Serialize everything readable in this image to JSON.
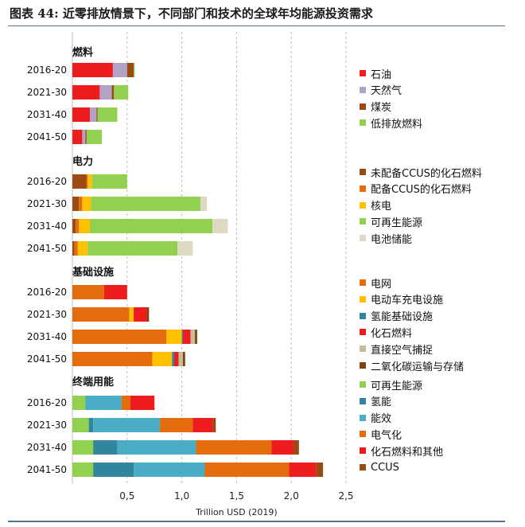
{
  "title": "图表 44:  近零排放情景下，不同部门和技术的全球年均能源投资需求",
  "chart_data": {
    "type": "bar",
    "orientation": "horizontal",
    "stacked": true,
    "xlabel": "Trillion USD (2019)",
    "xlim": [
      0,
      2.5
    ],
    "xticks": [
      "0,5",
      "1,0",
      "1,5",
      "2,0",
      "2,5"
    ],
    "tick_values": [
      0.5,
      1.0,
      1.5,
      2.0,
      2.5
    ],
    "grid": "vertical dashed",
    "panels": [
      {
        "name": "燃料",
        "categories": [
          "2016-20",
          "2021-30",
          "2031-40",
          "2041-50"
        ],
        "series": [
          {
            "name": "石油",
            "color": "#ee1c1c",
            "values": [
              0.37,
              0.25,
              0.16,
              0.09
            ]
          },
          {
            "name": "天然气",
            "color": "#b3a2c7",
            "values": [
              0.13,
              0.11,
              0.06,
              0.03
            ]
          },
          {
            "name": "煤炭",
            "color": "#9b4a12",
            "values": [
              0.06,
              0.02,
              0.01,
              0.01
            ]
          },
          {
            "name": "低排放燃料",
            "color": "#92d050",
            "values": [
              0.01,
              0.13,
              0.18,
              0.14
            ]
          }
        ]
      },
      {
        "name": "电力",
        "categories": [
          "2016-20",
          "2021-30",
          "2031-40",
          "2041-50"
        ],
        "series": [
          {
            "name": "未配备CCUS的化石燃料",
            "color": "#9b4a12",
            "values": [
              0.13,
              0.06,
              0.03,
              0.02
            ]
          },
          {
            "name": "配备CCUS的化石燃料",
            "color": "#e46c0a",
            "values": [
              0.01,
              0.03,
              0.03,
              0.03
            ]
          },
          {
            "name": "核电",
            "color": "#ffc000",
            "values": [
              0.04,
              0.08,
              0.1,
              0.09
            ]
          },
          {
            "name": "可再生能源",
            "color": "#92d050",
            "values": [
              0.32,
              1.0,
              1.12,
              0.82
            ]
          },
          {
            "name": "电池储能",
            "color": "#ddd9c3",
            "values": [
              0.0,
              0.06,
              0.14,
              0.14
            ]
          }
        ]
      },
      {
        "name": "基础设施",
        "categories": [
          "2016-20",
          "2021-30",
          "2031-40",
          "2041-50"
        ],
        "series": [
          {
            "name": "电网",
            "color": "#e46c0a",
            "values": [
              0.29,
              0.52,
              0.86,
              0.73
            ]
          },
          {
            "name": "电动车充电设施",
            "color": "#ffc000",
            "values": [
              0.0,
              0.04,
              0.14,
              0.18
            ]
          },
          {
            "name": "氢能基础设施",
            "color": "#31859c",
            "values": [
              0.0,
              0.0,
              0.01,
              0.02
            ]
          },
          {
            "name": "化石燃料",
            "color": "#ee1c1c",
            "values": [
              0.21,
              0.12,
              0.07,
              0.04
            ]
          },
          {
            "name": "直接空气捕捉",
            "color": "#c4bd97",
            "values": [
              0.0,
              0.0,
              0.04,
              0.04
            ]
          },
          {
            "name": "二氧化碳运输与存储",
            "color": "#7f3f10",
            "values": [
              0.0,
              0.02,
              0.02,
              0.02
            ]
          }
        ]
      },
      {
        "name": "终端用能",
        "categories": [
          "2016-20",
          "2021-30",
          "2031-40",
          "2041-50"
        ],
        "series": [
          {
            "name": "可再生能源",
            "color": "#92d050",
            "values": [
              0.12,
              0.15,
              0.19,
              0.19
            ]
          },
          {
            "name": "氢能",
            "color": "#31859c",
            "values": [
              0.0,
              0.04,
              0.22,
              0.37
            ]
          },
          {
            "name": "能效",
            "color": "#4bacc6",
            "values": [
              0.33,
              0.61,
              0.72,
              0.65
            ]
          },
          {
            "name": "电气化",
            "color": "#e46c0a",
            "values": [
              0.08,
              0.3,
              0.69,
              0.77
            ]
          },
          {
            "name": "化石燃料和其他",
            "color": "#ee1c1c",
            "values": [
              0.22,
              0.18,
              0.2,
              0.25
            ]
          },
          {
            "name": "CCUS",
            "color": "#9b4a12",
            "values": [
              0.0,
              0.03,
              0.05,
              0.06
            ]
          }
        ]
      }
    ]
  }
}
